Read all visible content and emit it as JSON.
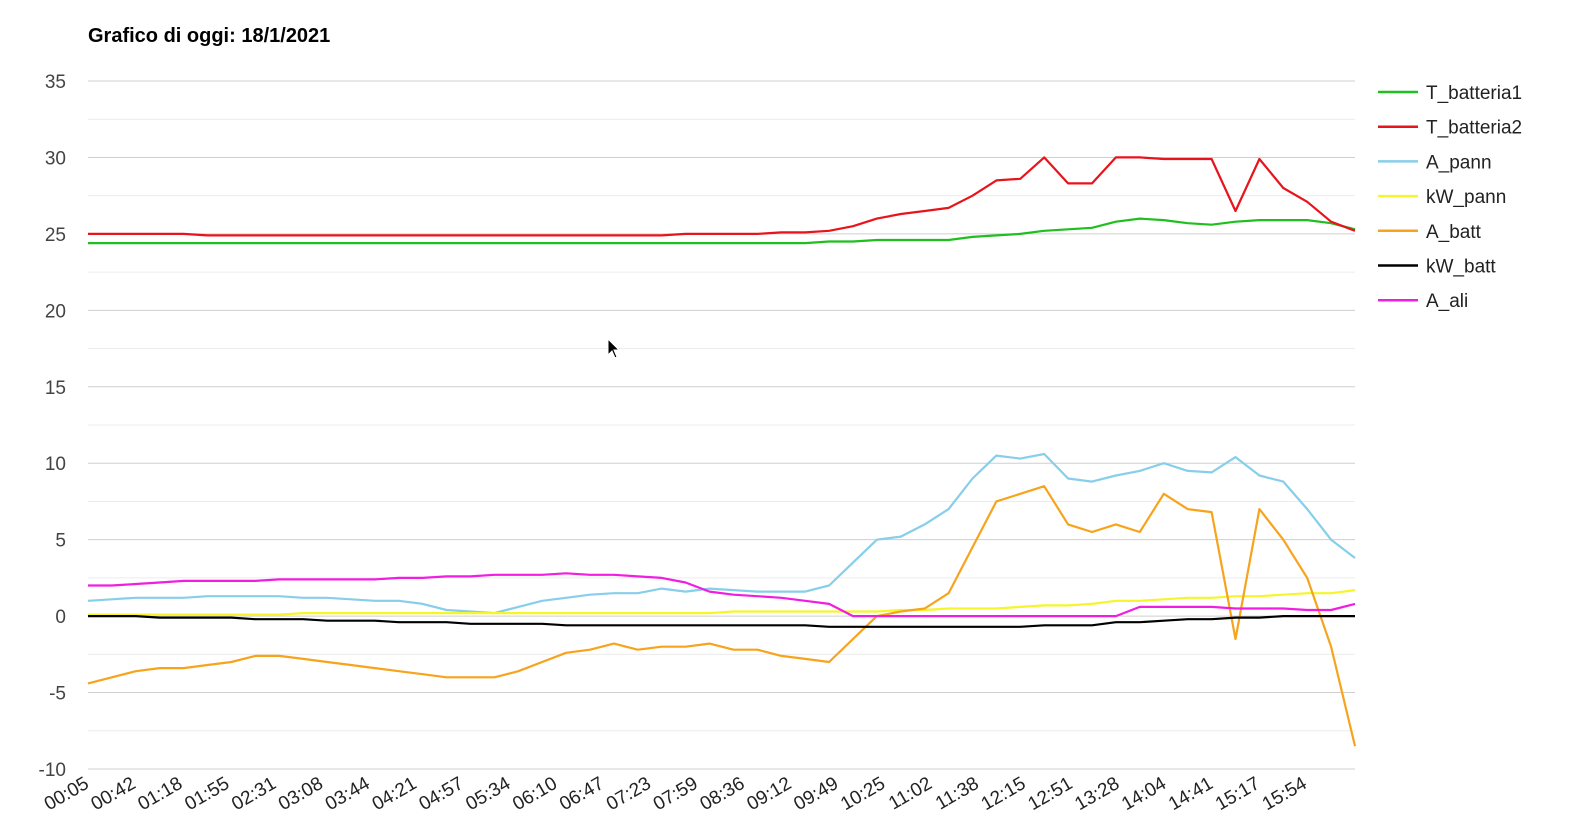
{
  "chart_data": {
    "type": "line",
    "title": "Grafico di oggi: 18/1/2021",
    "xlabel": "",
    "ylabel": "",
    "ylim": [
      -10,
      35
    ],
    "y_ticks": [
      35,
      30,
      25,
      20,
      15,
      10,
      5,
      0,
      -5,
      -10
    ],
    "grid": true,
    "legend_position": "right",
    "x_tick_labels": [
      "00:05",
      "00:42",
      "01:18",
      "01:55",
      "02:31",
      "03:08",
      "03:44",
      "04:21",
      "04:57",
      "05:34",
      "06:10",
      "06:47",
      "07:23",
      "07:59",
      "08:36",
      "09:12",
      "09:49",
      "10:25",
      "11:02",
      "11:38",
      "12:15",
      "12:51",
      "13:28",
      "14:04",
      "14:41",
      "15:17",
      "15:54"
    ],
    "x": [
      "00:05",
      "00:23",
      "00:42",
      "01:00",
      "01:18",
      "01:37",
      "01:55",
      "02:13",
      "02:31",
      "02:50",
      "03:08",
      "03:26",
      "03:44",
      "04:03",
      "04:21",
      "04:39",
      "04:57",
      "05:16",
      "05:34",
      "05:52",
      "06:10",
      "06:29",
      "06:47",
      "07:05",
      "07:23",
      "07:41",
      "07:59",
      "08:18",
      "08:36",
      "08:54",
      "09:12",
      "09:31",
      "09:49",
      "10:07",
      "10:25",
      "10:44",
      "11:02",
      "11:20",
      "11:38",
      "11:57",
      "12:15",
      "12:33",
      "12:51",
      "13:10",
      "13:28",
      "13:46",
      "14:04",
      "14:23",
      "14:41",
      "14:59",
      "15:17",
      "15:36",
      "15:54",
      "16:12"
    ],
    "series": [
      {
        "name": "T_batteria1",
        "color": "#1fbf1f",
        "values": [
          24.4,
          24.4,
          24.4,
          24.4,
          24.4,
          24.4,
          24.4,
          24.4,
          24.4,
          24.4,
          24.4,
          24.4,
          24.4,
          24.4,
          24.4,
          24.4,
          24.4,
          24.4,
          24.4,
          24.4,
          24.4,
          24.4,
          24.4,
          24.4,
          24.4,
          24.4,
          24.4,
          24.4,
          24.4,
          24.4,
          24.4,
          24.5,
          24.5,
          24.6,
          24.6,
          24.6,
          24.6,
          24.8,
          24.9,
          25.0,
          25.2,
          25.3,
          25.4,
          25.8,
          26.0,
          25.9,
          25.7,
          25.6,
          25.8,
          25.9,
          25.9,
          25.9,
          25.7,
          25.3
        ]
      },
      {
        "name": "T_batteria2",
        "color": "#e8141c",
        "values": [
          25.0,
          25.0,
          25.0,
          25.0,
          25.0,
          24.9,
          24.9,
          24.9,
          24.9,
          24.9,
          24.9,
          24.9,
          24.9,
          24.9,
          24.9,
          24.9,
          24.9,
          24.9,
          24.9,
          24.9,
          24.9,
          24.9,
          24.9,
          24.9,
          24.9,
          25.0,
          25.0,
          25.0,
          25.0,
          25.1,
          25.1,
          25.2,
          25.5,
          26.0,
          26.3,
          26.5,
          26.7,
          27.5,
          28.5,
          28.6,
          30.0,
          28.3,
          28.3,
          30.0,
          30.0,
          29.9,
          29.9,
          29.9,
          26.5,
          29.9,
          28.0,
          27.1,
          25.8,
          25.2
        ]
      },
      {
        "name": "A_pann",
        "color": "#87ceeb",
        "values": [
          1.0,
          1.1,
          1.2,
          1.2,
          1.2,
          1.3,
          1.3,
          1.3,
          1.3,
          1.2,
          1.2,
          1.1,
          1.0,
          1.0,
          0.8,
          0.4,
          0.3,
          0.2,
          0.6,
          1.0,
          1.2,
          1.4,
          1.5,
          1.5,
          1.8,
          1.6,
          1.8,
          1.7,
          1.6,
          1.6,
          1.6,
          2.0,
          3.5,
          5.0,
          5.2,
          6.0,
          7.0,
          9.0,
          10.5,
          10.3,
          10.6,
          9.0,
          8.8,
          9.2,
          9.5,
          10.0,
          9.5,
          9.4,
          10.4,
          9.2,
          8.8,
          7.0,
          5.0,
          3.8
        ]
      },
      {
        "name": "kW_pann",
        "color": "#f5f52a",
        "values": [
          0.1,
          0.1,
          0.1,
          0.1,
          0.1,
          0.1,
          0.1,
          0.1,
          0.1,
          0.2,
          0.2,
          0.2,
          0.2,
          0.2,
          0.2,
          0.2,
          0.2,
          0.2,
          0.2,
          0.2,
          0.2,
          0.2,
          0.2,
          0.2,
          0.2,
          0.2,
          0.2,
          0.3,
          0.3,
          0.3,
          0.3,
          0.3,
          0.3,
          0.3,
          0.4,
          0.4,
          0.5,
          0.5,
          0.5,
          0.6,
          0.7,
          0.7,
          0.8,
          1.0,
          1.0,
          1.1,
          1.2,
          1.2,
          1.3,
          1.3,
          1.4,
          1.5,
          1.5,
          1.7
        ]
      },
      {
        "name": "A_batt",
        "color": "#f7a31c",
        "values": [
          -4.4,
          -4.0,
          -3.6,
          -3.4,
          -3.4,
          -3.2,
          -3.0,
          -2.6,
          -2.6,
          -2.8,
          -3.0,
          -3.2,
          -3.4,
          -3.6,
          -3.8,
          -4.0,
          -4.0,
          -4.0,
          -3.6,
          -3.0,
          -2.4,
          -2.2,
          -1.8,
          -2.2,
          -2.0,
          -2.0,
          -1.8,
          -2.2,
          -2.2,
          -2.6,
          -2.8,
          -3.0,
          -1.5,
          0.0,
          0.3,
          0.5,
          1.5,
          4.5,
          7.5,
          8.0,
          8.5,
          6.0,
          5.5,
          6.0,
          5.5,
          8.0,
          7.0,
          6.8,
          -1.5,
          7.0,
          5.0,
          2.5,
          -2.0,
          -8.5
        ]
      },
      {
        "name": "kW_batt",
        "color": "#000000",
        "values": [
          0.0,
          0.0,
          0.0,
          -0.1,
          -0.1,
          -0.1,
          -0.1,
          -0.2,
          -0.2,
          -0.2,
          -0.3,
          -0.3,
          -0.3,
          -0.4,
          -0.4,
          -0.4,
          -0.5,
          -0.5,
          -0.5,
          -0.5,
          -0.6,
          -0.6,
          -0.6,
          -0.6,
          -0.6,
          -0.6,
          -0.6,
          -0.6,
          -0.6,
          -0.6,
          -0.6,
          -0.7,
          -0.7,
          -0.7,
          -0.7,
          -0.7,
          -0.7,
          -0.7,
          -0.7,
          -0.7,
          -0.6,
          -0.6,
          -0.6,
          -0.4,
          -0.4,
          -0.3,
          -0.2,
          -0.2,
          -0.1,
          -0.1,
          0.0,
          0.0,
          0.0,
          0.0
        ]
      },
      {
        "name": "A_ali",
        "color": "#f01ee0",
        "values": [
          2.0,
          2.0,
          2.1,
          2.2,
          2.3,
          2.3,
          2.3,
          2.3,
          2.4,
          2.4,
          2.4,
          2.4,
          2.4,
          2.5,
          2.5,
          2.6,
          2.6,
          2.7,
          2.7,
          2.7,
          2.8,
          2.7,
          2.7,
          2.6,
          2.5,
          2.2,
          1.6,
          1.4,
          1.3,
          1.2,
          1.0,
          0.8,
          0.0,
          0.0,
          0.0,
          0.0,
          0.0,
          0.0,
          0.0,
          0.0,
          0.0,
          0.0,
          0.0,
          0.0,
          0.6,
          0.6,
          0.6,
          0.6,
          0.5,
          0.5,
          0.5,
          0.4,
          0.4,
          0.8
        ]
      }
    ]
  }
}
